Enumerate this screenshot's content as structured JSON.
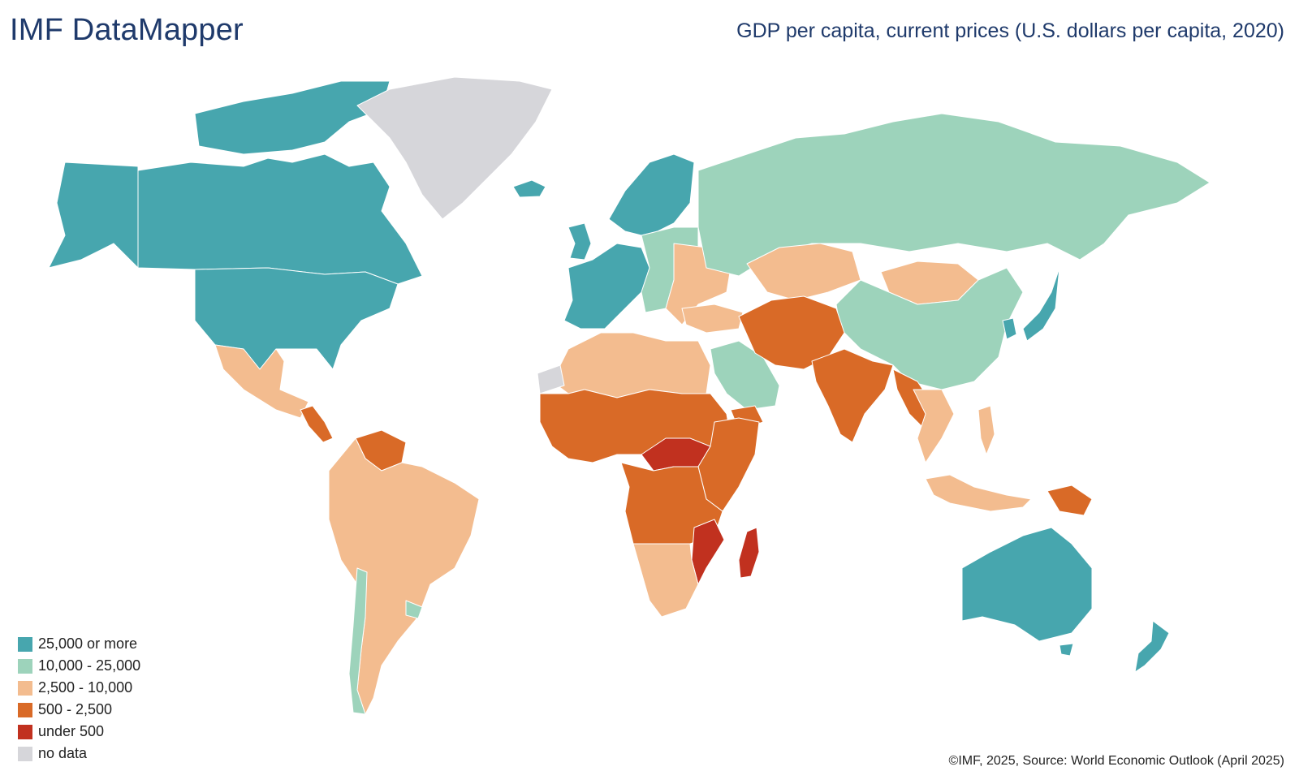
{
  "header": {
    "brand": "IMF DataMapper",
    "map_title": "GDP per capita, current prices (U.S. dollars per capita, 2020)"
  },
  "colors": {
    "band_25000_plus": "#47a6ae",
    "band_10000_25000": "#9dd3bb",
    "band_2500_10000": "#f3bc8f",
    "band_500_2500": "#d96a27",
    "band_under_500": "#c1311f",
    "no_data": "#d6d6da",
    "ocean": "#ffffff"
  },
  "legend": [
    {
      "label": "25,000 or more",
      "color": "#47a6ae"
    },
    {
      "label": "10,000 - 25,000",
      "color": "#9dd3bb"
    },
    {
      "label": "2,500 - 10,000",
      "color": "#f3bc8f"
    },
    {
      "label": "500 - 2,500",
      "color": "#d96a27"
    },
    {
      "label": "under 500",
      "color": "#c1311f"
    },
    {
      "label": "no data",
      "color": "#d6d6da"
    }
  ],
  "footer": {
    "credit": "©IMF, 2025, Source: World Economic Outlook (April 2025)"
  }
}
